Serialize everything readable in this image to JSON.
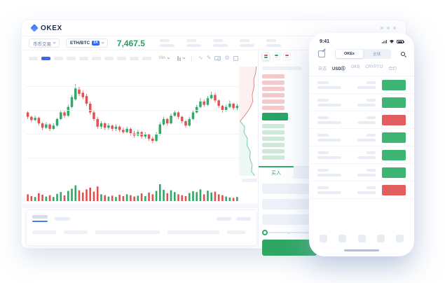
{
  "colors": {
    "accent_blue": "#3468f5",
    "brand_navy": "#1e2b48",
    "green": "#2fa763",
    "red": "#e25d5d",
    "candle_green": "#2fa968",
    "candle_red": "#e0514f",
    "ask_bar": "#f5caca",
    "bid_bar": "#cfe9da",
    "last_price_bar": "#27a566",
    "placeholder": "#e9eef6"
  },
  "window": {
    "brand": "OKEX"
  },
  "toolbar": {
    "market": "币币交易",
    "pair": "ETH/BTC",
    "leverage": "3X",
    "price": "7,467.5",
    "stat_group_count": 5
  },
  "chart_toolbar": {
    "pill_count": 10,
    "active_pill_index": 1,
    "ma_label": "MA",
    "icons": [
      "ma-indicator",
      "candle-style",
      "line-tool",
      "draw-tool",
      "camera",
      "settings-gear",
      "fullscreen"
    ]
  },
  "order_book": {
    "display_mode_icons": [
      "both",
      "bids-only",
      "asks-only"
    ],
    "active_mode": 0,
    "ask_rows": 6,
    "bid_rows": 6
  },
  "trade": {
    "buy_tab": "买入",
    "input_count": 3,
    "slider_position": 0
  },
  "chart_data": {
    "type": "candlestick",
    "title": "ETH/BTC 3X",
    "last_price": "7,467.5",
    "grid": true,
    "ylim": [
      0,
      100
    ],
    "candle_format": [
      "open",
      "close",
      "low",
      "high"
    ],
    "candles": [
      [
        58,
        54,
        52,
        59
      ],
      [
        54,
        51,
        49,
        55
      ],
      [
        51,
        53,
        50,
        55
      ],
      [
        53,
        48,
        46,
        54
      ],
      [
        48,
        44,
        42,
        49
      ],
      [
        44,
        47,
        43,
        49
      ],
      [
        47,
        43,
        41,
        48
      ],
      [
        43,
        46,
        42,
        48
      ],
      [
        46,
        52,
        45,
        53
      ],
      [
        52,
        58,
        51,
        60
      ],
      [
        58,
        55,
        53,
        60
      ],
      [
        55,
        63,
        54,
        65
      ],
      [
        63,
        72,
        62,
        74
      ],
      [
        70,
        80,
        69,
        84
      ],
      [
        79,
        75,
        73,
        82
      ],
      [
        76,
        72,
        70,
        78
      ],
      [
        73,
        66,
        64,
        75
      ],
      [
        66,
        58,
        56,
        68
      ],
      [
        58,
        52,
        50,
        60
      ],
      [
        52,
        45,
        43,
        54
      ],
      [
        45,
        48,
        43,
        50
      ],
      [
        48,
        44,
        42,
        49
      ],
      [
        44,
        46,
        42,
        48
      ],
      [
        46,
        43,
        41,
        47
      ],
      [
        43,
        45,
        41,
        47
      ],
      [
        45,
        42,
        40,
        46
      ],
      [
        42,
        40,
        38,
        44
      ],
      [
        40,
        43,
        39,
        45
      ],
      [
        43,
        39,
        37,
        44
      ],
      [
        39,
        37,
        35,
        41
      ],
      [
        37,
        40,
        36,
        42
      ],
      [
        40,
        36,
        34,
        41
      ],
      [
        36,
        38,
        34,
        40
      ],
      [
        38,
        34,
        32,
        39
      ],
      [
        34,
        32,
        30,
        36
      ],
      [
        32,
        38,
        31,
        40
      ],
      [
        38,
        47,
        37,
        49
      ],
      [
        47,
        52,
        46,
        54
      ],
      [
        52,
        48,
        46,
        53
      ],
      [
        48,
        55,
        47,
        57
      ],
      [
        55,
        58,
        54,
        60
      ],
      [
        58,
        54,
        52,
        59
      ],
      [
        54,
        50,
        48,
        55
      ],
      [
        50,
        46,
        44,
        51
      ],
      [
        46,
        52,
        45,
        54
      ],
      [
        52,
        58,
        51,
        60
      ],
      [
        58,
        63,
        57,
        65
      ],
      [
        63,
        68,
        62,
        71
      ],
      [
        68,
        65,
        63,
        70
      ],
      [
        65,
        71,
        64,
        73
      ],
      [
        71,
        74,
        70,
        77
      ],
      [
        74,
        69,
        67,
        76
      ],
      [
        69,
        64,
        62,
        70
      ],
      [
        64,
        60,
        58,
        65
      ],
      [
        60,
        63,
        59,
        65
      ],
      [
        63,
        66,
        62,
        69
      ],
      [
        66,
        62,
        60,
        67
      ],
      [
        62,
        64,
        60,
        66
      ]
    ],
    "volume": [
      30,
      22,
      18,
      35,
      28,
      20,
      26,
      18,
      32,
      40,
      25,
      45,
      55,
      70,
      48,
      38,
      52,
      60,
      42,
      65,
      30,
      26,
      20,
      24,
      18,
      28,
      22,
      30,
      26,
      20,
      24,
      34,
      22,
      38,
      30,
      45,
      75,
      50,
      35,
      48,
      40,
      30,
      26,
      22,
      36,
      44,
      40,
      52,
      30,
      46,
      38,
      42,
      30,
      26,
      20,
      16,
      14,
      18
    ],
    "depth": {
      "asks_line": [
        [
          92,
          0
        ],
        [
          88,
          6
        ],
        [
          78,
          12
        ],
        [
          80,
          18
        ],
        [
          70,
          26
        ],
        [
          73,
          32
        ],
        [
          58,
          38
        ],
        [
          34,
          44
        ],
        [
          6,
          50
        ]
      ],
      "bids_line": [
        [
          6,
          50
        ],
        [
          30,
          55
        ],
        [
          26,
          60
        ],
        [
          45,
          66
        ],
        [
          42,
          72
        ],
        [
          60,
          78
        ],
        [
          57,
          84
        ],
        [
          70,
          90
        ],
        [
          66,
          96
        ],
        [
          84,
          100
        ]
      ],
      "asks_fill": "#fdf0f0",
      "bids_fill": "#eef8f2",
      "asks_stroke": "#e08a8a",
      "bids_stroke": "#7cc9a2"
    }
  },
  "phone": {
    "time": "9:41",
    "status_icons": [
      "signal",
      "wifi",
      "battery"
    ],
    "segments": [
      "OKEx",
      "全球"
    ],
    "selected_segment": 0,
    "tabs": [
      "自选",
      "USDⓈ",
      "OKB",
      "CRYPTO",
      "合约"
    ],
    "selected_tab": 1,
    "rows": [
      "green",
      "green",
      "red",
      "green",
      "green",
      "green",
      "red"
    ],
    "bottom_nav_count": 5
  }
}
